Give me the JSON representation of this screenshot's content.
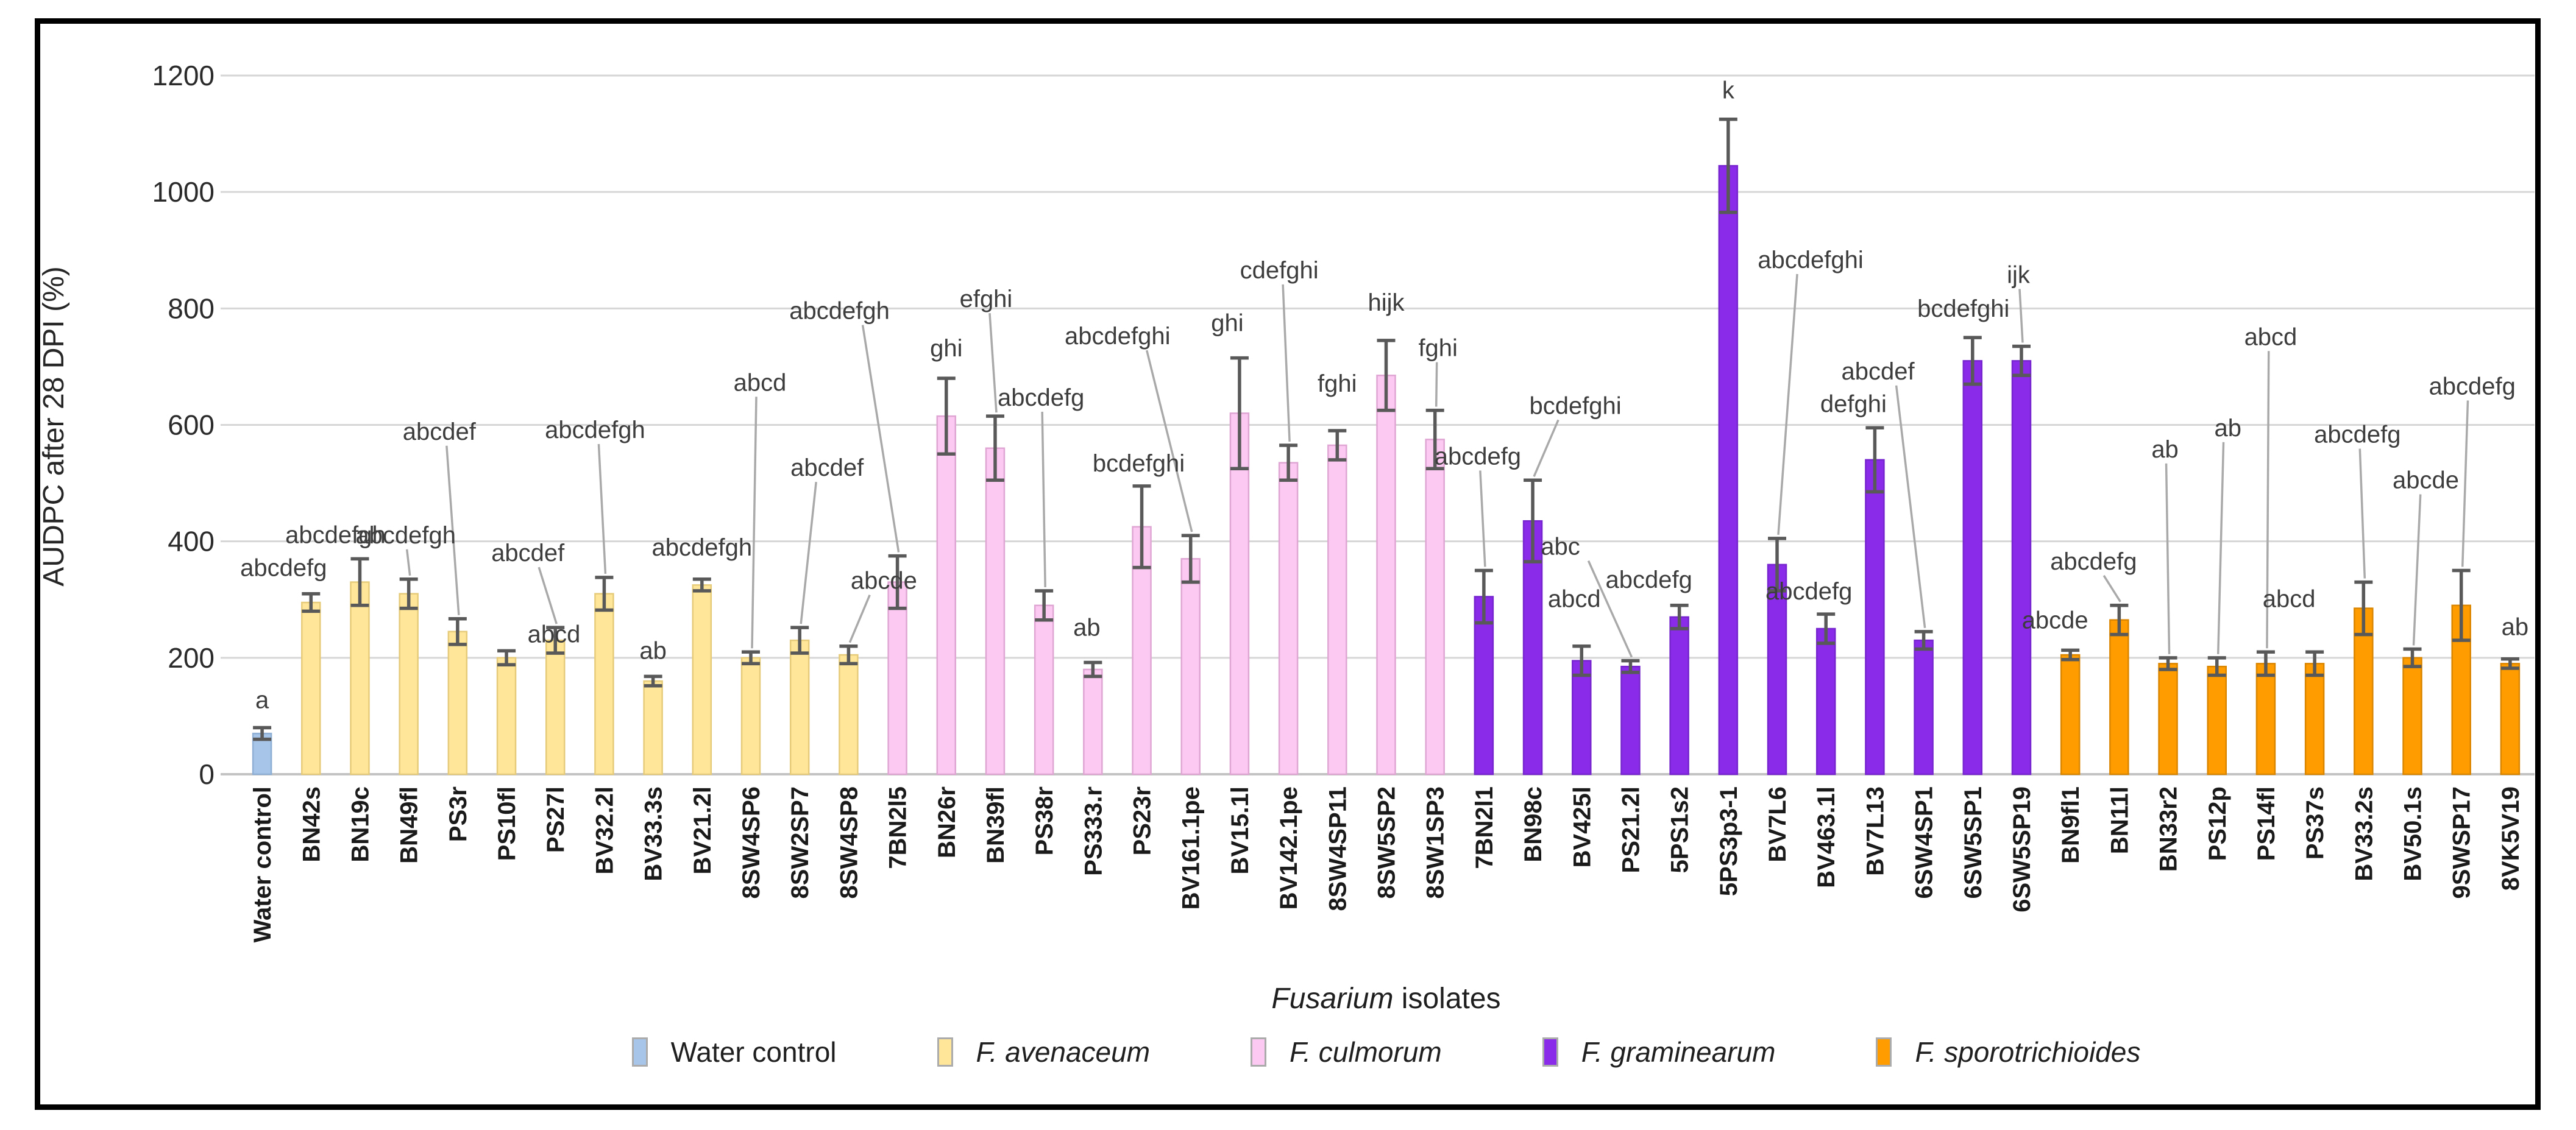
{
  "y_axis": {
    "title": "AUDPC  after 28 DPI (%)",
    "ticks": [
      0,
      200,
      400,
      600,
      800,
      1000,
      1200
    ]
  },
  "x_axis": {
    "title_italic": "Fusarium",
    "title_rest": " isolates"
  },
  "legend": [
    {
      "label": "Water control",
      "italic": false,
      "color": "#A6C5E8"
    },
    {
      "label": "F. avenaceum",
      "italic": true,
      "color": "#FFE699"
    },
    {
      "label": "F. culmorum",
      "italic": true,
      "color": "#FBC9F1"
    },
    {
      "label": "F. graminearum",
      "italic": true,
      "color": "#892BE8"
    },
    {
      "label": "F. sporotrichioides",
      "italic": true,
      "color": "#FF9D00"
    }
  ],
  "chart_data": {
    "type": "bar",
    "title": "",
    "xlabel": "Fusarium isolates",
    "ylabel": "AUDPC  after 28 DPI (%)",
    "ylim": [
      0,
      1200
    ],
    "ytick_step": 200,
    "grid": true,
    "legend_position": "bottom",
    "error_bar_color": "#595959",
    "gridline_color": "#D6D6D6",
    "series_colors": {
      "water": {
        "fill": "#A6C5E8",
        "stroke": "#8FAFD4"
      },
      "avenaceum": {
        "fill": "#FFE699",
        "stroke": "#E6CC7A"
      },
      "culmorum": {
        "fill": "#FBC9F1",
        "stroke": "#DFA6D4"
      },
      "graminearum": {
        "fill": "#892BE8",
        "stroke": "#7726CF"
      },
      "sporotrichioides": {
        "fill": "#FF9D00",
        "stroke": "#DB8600"
      }
    },
    "bars": [
      {
        "label": "Water control",
        "species": "water",
        "value": 70,
        "err": 10,
        "letters": "a",
        "lift": 18,
        "dx": 0,
        "leader": false
      },
      {
        "label": "BN42s",
        "species": "avenaceum",
        "value": 295,
        "err": 15,
        "letters": "abcdefg",
        "lift": 15,
        "dx": -45,
        "leader": false
      },
      {
        "label": "BN19c",
        "species": "avenaceum",
        "value": 330,
        "err": 40,
        "letters": "abcdefgh",
        "lift": 12,
        "dx": -40,
        "leader": false
      },
      {
        "label": "BN49fl",
        "species": "avenaceum",
        "value": 310,
        "err": 25,
        "letters": "abcdefgh",
        "lift": 45,
        "dx": -5,
        "leader": true
      },
      {
        "label": "PS3r",
        "species": "avenaceum",
        "value": 245,
        "err": 22,
        "letters": "abcdef",
        "lift": 280,
        "dx": -30,
        "leader": true
      },
      {
        "label": "PS10fl",
        "species": "avenaceum",
        "value": 200,
        "err": 12,
        "letters": "abcd",
        "lift": 0,
        "dx": 78,
        "leader": false
      },
      {
        "label": "PS27l",
        "species": "avenaceum",
        "value": 230,
        "err": 22,
        "letters": "abcdef",
        "lift": 95,
        "dx": -45,
        "leader": true
      },
      {
        "label": "BV32.2l",
        "species": "avenaceum",
        "value": 310,
        "err": 28,
        "letters": "abcdefgh",
        "lift": 215,
        "dx": -15,
        "leader": true
      },
      {
        "label": "BV33.3s",
        "species": "avenaceum",
        "value": 160,
        "err": 8,
        "letters": "ab",
        "lift": 15,
        "dx": 0,
        "leader": false
      },
      {
        "label": "BV21.2l",
        "species": "avenaceum",
        "value": 325,
        "err": 10,
        "letters": "abcdefgh",
        "lift": 25,
        "dx": 0,
        "leader": false
      },
      {
        "label": "8SW4SP6",
        "species": "avenaceum",
        "value": 200,
        "err": 10,
        "letters": "abcd",
        "lift": 415,
        "dx": 15,
        "leader": true
      },
      {
        "label": "8SW2SP7",
        "species": "avenaceum",
        "value": 230,
        "err": 22,
        "letters": "abcdef",
        "lift": 235,
        "dx": 45,
        "leader": true
      },
      {
        "label": "8SW4SP8",
        "species": "avenaceum",
        "value": 205,
        "err": 15,
        "letters": "abcde",
        "lift": 80,
        "dx": 58,
        "leader": true
      },
      {
        "label": "7BN2l5",
        "species": "culmorum",
        "value": 330,
        "err": 45,
        "letters": "abcdefgh",
        "lift": 375,
        "dx": -95,
        "leader": true
      },
      {
        "label": "BN26r",
        "species": "culmorum",
        "value": 615,
        "err": 65,
        "letters": "ghi",
        "lift": 22,
        "dx": 0,
        "leader": false
      },
      {
        "label": "BN39fl",
        "species": "culmorum",
        "value": 560,
        "err": 55,
        "letters": "efghi",
        "lift": 165,
        "dx": -15,
        "leader": true
      },
      {
        "label": "PS38r",
        "species": "culmorum",
        "value": 290,
        "err": 25,
        "letters": "abcdefg",
        "lift": 290,
        "dx": -5,
        "leader": true
      },
      {
        "label": "PS333.r",
        "species": "culmorum",
        "value": 180,
        "err": 12,
        "letters": "ab",
        "lift": 30,
        "dx": -10,
        "leader": false
      },
      {
        "label": "PS23r",
        "species": "culmorum",
        "value": 425,
        "err": 70,
        "letters": "bcdefghi",
        "lift": 10,
        "dx": -5,
        "leader": false
      },
      {
        "label": "BV161.1pe",
        "species": "culmorum",
        "value": 370,
        "err": 40,
        "letters": "abcdefghi",
        "lift": 300,
        "dx": -120,
        "leader": true
      },
      {
        "label": "BV15.1l",
        "species": "culmorum",
        "value": 620,
        "err": 95,
        "letters": "ghi",
        "lift": 30,
        "dx": -20,
        "leader": false
      },
      {
        "label": "BV142.1pe",
        "species": "culmorum",
        "value": 535,
        "err": 30,
        "letters": "cdefghi",
        "lift": 260,
        "dx": -15,
        "leader": true
      },
      {
        "label": "8SW4SP11",
        "species": "culmorum",
        "value": 565,
        "err": 25,
        "letters": "fghi",
        "lift": 50,
        "dx": 0,
        "leader": false
      },
      {
        "label": "8SW5SP2",
        "species": "culmorum",
        "value": 685,
        "err": 60,
        "letters": "hijk",
        "lift": 35,
        "dx": 0,
        "leader": false
      },
      {
        "label": "8SW1SP3",
        "species": "culmorum",
        "value": 575,
        "err": 50,
        "letters": "fghi",
        "lift": 75,
        "dx": 5,
        "leader": true
      },
      {
        "label": "7BN2l1",
        "species": "graminearum",
        "value": 305,
        "err": 45,
        "letters": "abcdefg",
        "lift": 160,
        "dx": -10,
        "leader": true
      },
      {
        "label": "BN98c",
        "species": "graminearum",
        "value": 435,
        "err": 70,
        "letters": "bcdefghi",
        "lift": 95,
        "dx": 70,
        "leader": true
      },
      {
        "label": "BV425l",
        "species": "graminearum",
        "value": 195,
        "err": 25,
        "letters": "abcd",
        "lift": 50,
        "dx": -12,
        "leader": false
      },
      {
        "label": "PS21.2l",
        "species": "graminearum",
        "value": 185,
        "err": 10,
        "letters": "abc",
        "lift": 160,
        "dx": -115,
        "leader": true
      },
      {
        "label": "5PS1s2",
        "species": "graminearum",
        "value": 270,
        "err": 20,
        "letters": "abcdefg",
        "lift": 15,
        "dx": -50,
        "leader": false
      },
      {
        "label": "5PS3p3-1",
        "species": "graminearum",
        "value": 1045,
        "err": 80,
        "letters": "k",
        "lift": 20,
        "dx": 0,
        "leader": false
      },
      {
        "label": "BV7L6",
        "species": "graminearum",
        "value": 360,
        "err": 45,
        "letters": "abcdefghi",
        "lift": 430,
        "dx": 55,
        "leader": true
      },
      {
        "label": "BV463.1l",
        "species": "graminearum",
        "value": 250,
        "err": 25,
        "letters": "abcdefg",
        "lift": 10,
        "dx": -28,
        "leader": false
      },
      {
        "label": "BV7L13",
        "species": "graminearum",
        "value": 540,
        "err": 55,
        "letters": "defghi",
        "lift": 12,
        "dx": -35,
        "leader": false
      },
      {
        "label": "6SW4SP1",
        "species": "graminearum",
        "value": 230,
        "err": 15,
        "letters": "abcdef",
        "lift": 400,
        "dx": -75,
        "leader": true
      },
      {
        "label": "6SW5SP1",
        "species": "graminearum",
        "value": 710,
        "err": 40,
        "letters": "bcdefghi",
        "lift": 20,
        "dx": -15,
        "leader": false
      },
      {
        "label": "6SW5SP19",
        "species": "graminearum",
        "value": 710,
        "err": 25,
        "letters": "ijk",
        "lift": 90,
        "dx": -5,
        "leader": true
      },
      {
        "label": "BN9fl1",
        "species": "sporotrichioides",
        "value": 205,
        "err": 8,
        "letters": "abcde",
        "lift": 22,
        "dx": -25,
        "leader": false
      },
      {
        "label": "BN11l",
        "species": "sporotrichioides",
        "value": 265,
        "err": 25,
        "letters": "abcdefg",
        "lift": 45,
        "dx": -42,
        "leader": true
      },
      {
        "label": "BN33r2",
        "species": "sporotrichioides",
        "value": 190,
        "err": 10,
        "letters": "ab",
        "lift": 315,
        "dx": -5,
        "leader": true
      },
      {
        "label": "PS12p",
        "species": "sporotrichioides",
        "value": 185,
        "err": 15,
        "letters": "ab",
        "lift": 350,
        "dx": 18,
        "leader": true
      },
      {
        "label": "PS14fl",
        "species": "sporotrichioides",
        "value": 190,
        "err": 20,
        "letters": "abcd",
        "lift": 490,
        "dx": 8,
        "leader": true
      },
      {
        "label": "PS37s",
        "species": "sporotrichioides",
        "value": 190,
        "err": 20,
        "letters": "abcd",
        "lift": 60,
        "dx": -42,
        "leader": false
      },
      {
        "label": "BV33.2s",
        "species": "sporotrichioides",
        "value": 285,
        "err": 45,
        "letters": "abcdefg",
        "lift": 215,
        "dx": -10,
        "leader": true
      },
      {
        "label": "BV50.1s",
        "species": "sporotrichioides",
        "value": 200,
        "err": 15,
        "letters": "abcde",
        "lift": 250,
        "dx": 22,
        "leader": true
      },
      {
        "label": "9SWSP17",
        "species": "sporotrichioides",
        "value": 290,
        "err": 60,
        "letters": "abcdefg",
        "lift": 275,
        "dx": 18,
        "leader": true
      },
      {
        "label": "8VK5V19",
        "species": "sporotrichioides",
        "value": 190,
        "err": 8,
        "letters": "ab",
        "lift": 25,
        "dx": 8,
        "leader": false
      }
    ]
  }
}
